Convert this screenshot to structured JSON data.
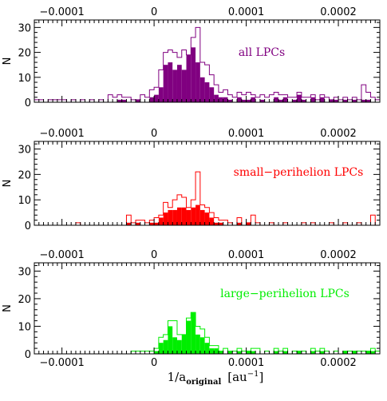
{
  "chart_data": {
    "type": "bar",
    "xlim": [
      -0.00013,
      0.000245
    ],
    "x_ticks": [
      {
        "value": -0.0001,
        "label": "−0.0001"
      },
      {
        "value": 0,
        "label": "0"
      },
      {
        "value": 0.0001,
        "label": "0.0001"
      },
      {
        "value": 0.0002,
        "label": "0.0002"
      }
    ],
    "x_minor_step": 5e-06,
    "xlabel": {
      "prefix": "1/a",
      "sub": "original",
      "unit_open": "[au",
      "sup": "−1",
      "unit_close": "]"
    },
    "bin_width": 5e-06,
    "panels": [
      {
        "label": "all LPCs",
        "color": "#800080",
        "ylabel": "N",
        "ylim": [
          0,
          33
        ],
        "y_ticks": [
          0,
          10,
          20,
          30
        ],
        "outline_bins": [
          {
            "x": -0.00013,
            "n": 1
          },
          {
            "x": -0.000125,
            "n": 1
          },
          {
            "x": -0.000115,
            "n": 1
          },
          {
            "x": -0.00011,
            "n": 1
          },
          {
            "x": -0.000105,
            "n": 1
          },
          {
            "x": -0.0001,
            "n": 1
          },
          {
            "x": -9e-05,
            "n": 1
          },
          {
            "x": -8e-05,
            "n": 1
          },
          {
            "x": -7e-05,
            "n": 1
          },
          {
            "x": -6e-05,
            "n": 1
          },
          {
            "x": -5e-05,
            "n": 3
          },
          {
            "x": -4.5e-05,
            "n": 2
          },
          {
            "x": -4e-05,
            "n": 3
          },
          {
            "x": -3.5e-05,
            "n": 2
          },
          {
            "x": -3e-05,
            "n": 2
          },
          {
            "x": -2.5e-05,
            "n": 1
          },
          {
            "x": -2e-05,
            "n": 1
          },
          {
            "x": -1.5e-05,
            "n": 3
          },
          {
            "x": -1e-05,
            "n": 2
          },
          {
            "x": -5e-06,
            "n": 5
          },
          {
            "x": 0,
            "n": 6
          },
          {
            "x": 5e-06,
            "n": 13
          },
          {
            "x": 1e-05,
            "n": 20
          },
          {
            "x": 1.5e-05,
            "n": 21
          },
          {
            "x": 2e-05,
            "n": 20
          },
          {
            "x": 2.5e-05,
            "n": 18
          },
          {
            "x": 3e-05,
            "n": 21
          },
          {
            "x": 3.5e-05,
            "n": 19
          },
          {
            "x": 4e-05,
            "n": 26
          },
          {
            "x": 4.5e-05,
            "n": 30
          },
          {
            "x": 5e-05,
            "n": 16
          },
          {
            "x": 5.5e-05,
            "n": 15
          },
          {
            "x": 6e-05,
            "n": 11
          },
          {
            "x": 6.5e-05,
            "n": 7
          },
          {
            "x": 7e-05,
            "n": 4
          },
          {
            "x": 7.5e-05,
            "n": 5
          },
          {
            "x": 8e-05,
            "n": 3
          },
          {
            "x": 8.5e-05,
            "n": 2
          },
          {
            "x": 9e-05,
            "n": 4
          },
          {
            "x": 9.5e-05,
            "n": 3
          },
          {
            "x": 0.0001,
            "n": 4
          },
          {
            "x": 0.000105,
            "n": 3
          },
          {
            "x": 0.00011,
            "n": 2
          },
          {
            "x": 0.000115,
            "n": 3
          },
          {
            "x": 0.00012,
            "n": 2
          },
          {
            "x": 0.000125,
            "n": 3
          },
          {
            "x": 0.00013,
            "n": 4
          },
          {
            "x": 0.000135,
            "n": 3
          },
          {
            "x": 0.00014,
            "n": 3
          },
          {
            "x": 0.000145,
            "n": 2
          },
          {
            "x": 0.00015,
            "n": 2
          },
          {
            "x": 0.000155,
            "n": 4
          },
          {
            "x": 0.00016,
            "n": 2
          },
          {
            "x": 0.000165,
            "n": 2
          },
          {
            "x": 0.00017,
            "n": 3
          },
          {
            "x": 0.000175,
            "n": 1
          },
          {
            "x": 0.00018,
            "n": 3
          },
          {
            "x": 0.000185,
            "n": 2
          },
          {
            "x": 0.00019,
            "n": 1
          },
          {
            "x": 0.000195,
            "n": 2
          },
          {
            "x": 0.0002,
            "n": 1
          },
          {
            "x": 0.000205,
            "n": 2
          },
          {
            "x": 0.00021,
            "n": 1
          },
          {
            "x": 0.000215,
            "n": 2
          },
          {
            "x": 0.00022,
            "n": 1
          },
          {
            "x": 0.000225,
            "n": 7
          },
          {
            "x": 0.00023,
            "n": 4
          },
          {
            "x": 0.000235,
            "n": 2
          },
          {
            "x": 0.00024,
            "n": 1
          }
        ],
        "filled_bins": [
          {
            "x": -4e-05,
            "n": 1
          },
          {
            "x": -3.5e-05,
            "n": 1
          },
          {
            "x": -2e-05,
            "n": 1
          },
          {
            "x": -5e-06,
            "n": 2
          },
          {
            "x": 0,
            "n": 3
          },
          {
            "x": 5e-06,
            "n": 6
          },
          {
            "x": 1e-05,
            "n": 15
          },
          {
            "x": 1.5e-05,
            "n": 16
          },
          {
            "x": 2e-05,
            "n": 13
          },
          {
            "x": 2.5e-05,
            "n": 15
          },
          {
            "x": 3e-05,
            "n": 13
          },
          {
            "x": 3.5e-05,
            "n": 19
          },
          {
            "x": 4e-05,
            "n": 22
          },
          {
            "x": 4.5e-05,
            "n": 16
          },
          {
            "x": 5e-05,
            "n": 10
          },
          {
            "x": 5.5e-05,
            "n": 8
          },
          {
            "x": 6e-05,
            "n": 6
          },
          {
            "x": 6.5e-05,
            "n": 3
          },
          {
            "x": 7e-05,
            "n": 2
          },
          {
            "x": 7.5e-05,
            "n": 2
          },
          {
            "x": 8e-05,
            "n": 1
          },
          {
            "x": 9e-05,
            "n": 2
          },
          {
            "x": 9.5e-05,
            "n": 1
          },
          {
            "x": 0.0001,
            "n": 1
          },
          {
            "x": 0.000105,
            "n": 2
          },
          {
            "x": 0.000115,
            "n": 1
          },
          {
            "x": 0.00013,
            "n": 2
          },
          {
            "x": 0.000135,
            "n": 1
          },
          {
            "x": 0.00014,
            "n": 2
          },
          {
            "x": 0.00015,
            "n": 1
          },
          {
            "x": 0.000155,
            "n": 3
          },
          {
            "x": 0.00016,
            "n": 1
          },
          {
            "x": 0.00017,
            "n": 2
          },
          {
            "x": 0.00018,
            "n": 2
          },
          {
            "x": 0.00019,
            "n": 1
          },
          {
            "x": 0.000195,
            "n": 1
          },
          {
            "x": 0.000205,
            "n": 1
          },
          {
            "x": 0.000215,
            "n": 1
          },
          {
            "x": 0.000225,
            "n": 1
          },
          {
            "x": 0.00023,
            "n": 1
          }
        ]
      },
      {
        "label": "small−perihelion LPCs",
        "color": "#ff0000",
        "ylabel": "N",
        "ylim": [
          0,
          33
        ],
        "y_ticks": [
          0,
          10,
          20,
          30
        ],
        "outline_bins": [
          {
            "x": -8.5e-05,
            "n": 1
          },
          {
            "x": -3e-05,
            "n": 4
          },
          {
            "x": -2.5e-05,
            "n": 1
          },
          {
            "x": -2e-05,
            "n": 2
          },
          {
            "x": -1.5e-05,
            "n": 2
          },
          {
            "x": -1e-05,
            "n": 1
          },
          {
            "x": -5e-06,
            "n": 2
          },
          {
            "x": 0,
            "n": 3
          },
          {
            "x": 5e-06,
            "n": 4
          },
          {
            "x": 1e-05,
            "n": 9
          },
          {
            "x": 1.5e-05,
            "n": 7
          },
          {
            "x": 2e-05,
            "n": 10
          },
          {
            "x": 2.5e-05,
            "n": 12
          },
          {
            "x": 3e-05,
            "n": 11
          },
          {
            "x": 3.5e-05,
            "n": 7
          },
          {
            "x": 4e-05,
            "n": 10
          },
          {
            "x": 4.5e-05,
            "n": 21
          },
          {
            "x": 5e-05,
            "n": 8
          },
          {
            "x": 5.5e-05,
            "n": 7
          },
          {
            "x": 6e-05,
            "n": 5
          },
          {
            "x": 6.5e-05,
            "n": 3
          },
          {
            "x": 7e-05,
            "n": 2
          },
          {
            "x": 7.5e-05,
            "n": 2
          },
          {
            "x": 8e-05,
            "n": 1
          },
          {
            "x": 9e-05,
            "n": 3
          },
          {
            "x": 0.0001,
            "n": 1
          },
          {
            "x": 0.000105,
            "n": 4
          },
          {
            "x": 0.00011,
            "n": 1
          },
          {
            "x": 0.000125,
            "n": 1
          },
          {
            "x": 0.00014,
            "n": 1
          },
          {
            "x": 0.00016,
            "n": 1
          },
          {
            "x": 0.00017,
            "n": 1
          },
          {
            "x": 0.00019,
            "n": 1
          },
          {
            "x": 0.000205,
            "n": 1
          },
          {
            "x": 0.00022,
            "n": 1
          },
          {
            "x": 0.000235,
            "n": 4
          }
        ],
        "filled_bins": [
          {
            "x": -3e-05,
            "n": 1
          },
          {
            "x": -2e-05,
            "n": 1
          },
          {
            "x": -5e-06,
            "n": 1
          },
          {
            "x": 0,
            "n": 1
          },
          {
            "x": 5e-06,
            "n": 3
          },
          {
            "x": 1e-05,
            "n": 5
          },
          {
            "x": 1.5e-05,
            "n": 6
          },
          {
            "x": 2e-05,
            "n": 6
          },
          {
            "x": 2.5e-05,
            "n": 7
          },
          {
            "x": 3e-05,
            "n": 7
          },
          {
            "x": 3.5e-05,
            "n": 6
          },
          {
            "x": 4e-05,
            "n": 7
          },
          {
            "x": 4.5e-05,
            "n": 8
          },
          {
            "x": 5e-05,
            "n": 6
          },
          {
            "x": 5.5e-05,
            "n": 5
          },
          {
            "x": 6e-05,
            "n": 3
          },
          {
            "x": 6.5e-05,
            "n": 1
          },
          {
            "x": 7e-05,
            "n": 1
          },
          {
            "x": 9e-05,
            "n": 1
          },
          {
            "x": 0.0001,
            "n": 1
          }
        ]
      },
      {
        "label": "large−perihelion LPCs",
        "color": "#00ee00",
        "ylabel": "N",
        "ylim": [
          0,
          33
        ],
        "y_ticks": [
          0,
          10,
          20,
          30
        ],
        "outline_bins": [
          {
            "x": -2.5e-05,
            "n": 1
          },
          {
            "x": -2e-05,
            "n": 1
          },
          {
            "x": -1.5e-05,
            "n": 1
          },
          {
            "x": -1e-05,
            "n": 1
          },
          {
            "x": -5e-06,
            "n": 1
          },
          {
            "x": 0,
            "n": 2
          },
          {
            "x": 5e-06,
            "n": 6
          },
          {
            "x": 1e-05,
            "n": 7
          },
          {
            "x": 1.5e-05,
            "n": 12
          },
          {
            "x": 2e-05,
            "n": 12
          },
          {
            "x": 2.5e-05,
            "n": 7
          },
          {
            "x": 3e-05,
            "n": 7
          },
          {
            "x": 3.5e-05,
            "n": 13
          },
          {
            "x": 4e-05,
            "n": 15
          },
          {
            "x": 4.5e-05,
            "n": 10
          },
          {
            "x": 5e-05,
            "n": 9
          },
          {
            "x": 5.5e-05,
            "n": 6
          },
          {
            "x": 6e-05,
            "n": 3
          },
          {
            "x": 6.5e-05,
            "n": 3
          },
          {
            "x": 7e-05,
            "n": 1
          },
          {
            "x": 7.5e-05,
            "n": 2
          },
          {
            "x": 8e-05,
            "n": 1
          },
          {
            "x": 8.5e-05,
            "n": 1
          },
          {
            "x": 9e-05,
            "n": 2
          },
          {
            "x": 9.5e-05,
            "n": 1
          },
          {
            "x": 0.0001,
            "n": 1
          },
          {
            "x": 0.000105,
            "n": 2
          },
          {
            "x": 0.00011,
            "n": 2
          },
          {
            "x": 0.00012,
            "n": 1
          },
          {
            "x": 0.00013,
            "n": 2
          },
          {
            "x": 0.000135,
            "n": 1
          },
          {
            "x": 0.00014,
            "n": 2
          },
          {
            "x": 0.00015,
            "n": 1
          },
          {
            "x": 0.000155,
            "n": 1
          },
          {
            "x": 0.00016,
            "n": 1
          },
          {
            "x": 0.00017,
            "n": 2
          },
          {
            "x": 0.000175,
            "n": 1
          },
          {
            "x": 0.00018,
            "n": 2
          },
          {
            "x": 0.000185,
            "n": 1
          },
          {
            "x": 0.000195,
            "n": 1
          },
          {
            "x": 0.000205,
            "n": 1
          },
          {
            "x": 0.00021,
            "n": 1
          },
          {
            "x": 0.000215,
            "n": 1
          },
          {
            "x": 0.00022,
            "n": 1
          },
          {
            "x": 0.000225,
            "n": 1
          },
          {
            "x": 0.00023,
            "n": 1
          },
          {
            "x": 0.000235,
            "n": 2
          },
          {
            "x": 0.00024,
            "n": 1
          }
        ],
        "filled_bins": [
          {
            "x": 0,
            "n": 1
          },
          {
            "x": 5e-06,
            "n": 4
          },
          {
            "x": 1e-05,
            "n": 5
          },
          {
            "x": 1.5e-05,
            "n": 10
          },
          {
            "x": 2e-05,
            "n": 6
          },
          {
            "x": 2.5e-05,
            "n": 5
          },
          {
            "x": 3e-05,
            "n": 7
          },
          {
            "x": 3.5e-05,
            "n": 12
          },
          {
            "x": 4e-05,
            "n": 15
          },
          {
            "x": 4.5e-05,
            "n": 7
          },
          {
            "x": 5e-05,
            "n": 6
          },
          {
            "x": 5.5e-05,
            "n": 4
          },
          {
            "x": 6e-05,
            "n": 2
          },
          {
            "x": 6.5e-05,
            "n": 2
          },
          {
            "x": 7e-05,
            "n": 1
          },
          {
            "x": 8e-05,
            "n": 1
          },
          {
            "x": 9e-05,
            "n": 1
          },
          {
            "x": 0.0001,
            "n": 1
          },
          {
            "x": 0.000105,
            "n": 1
          },
          {
            "x": 0.00013,
            "n": 1
          },
          {
            "x": 0.00014,
            "n": 1
          },
          {
            "x": 0.000155,
            "n": 1
          },
          {
            "x": 0.00017,
            "n": 1
          },
          {
            "x": 0.00018,
            "n": 1
          },
          {
            "x": 0.000205,
            "n": 1
          },
          {
            "x": 0.000215,
            "n": 1
          },
          {
            "x": 0.00023,
            "n": 1
          },
          {
            "x": 0.000235,
            "n": 1
          }
        ]
      }
    ]
  }
}
